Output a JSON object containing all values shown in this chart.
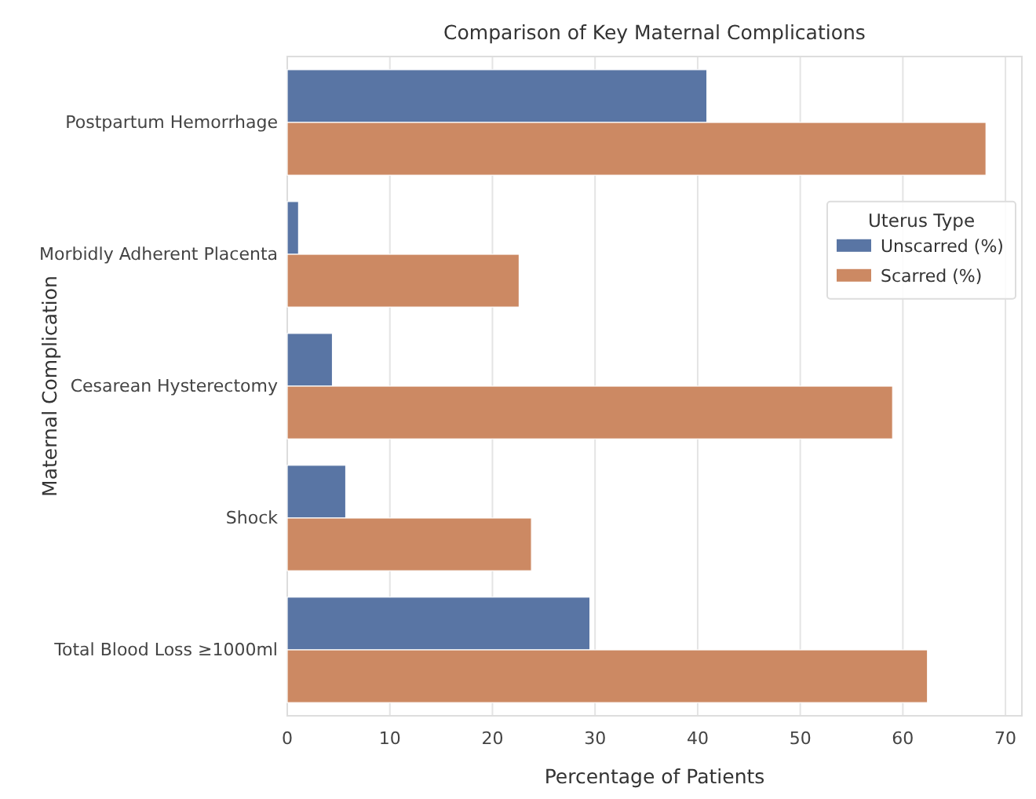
{
  "chart_data": {
    "type": "bar",
    "orientation": "horizontal",
    "title": "Comparison of Key Maternal Complications",
    "xlabel": "Percentage of Patients",
    "ylabel": "Maternal Complication",
    "legend_title": "Uterus Type",
    "legend": "top right",
    "grid": "x",
    "categories": [
      "Postpartum Hemorrhage",
      "Morbidly Adherent Placenta",
      "Cesarean Hysterectomy",
      "Shock",
      "Total Blood Loss ≥1000ml"
    ],
    "series": [
      {
        "name": "Unscarred (%)",
        "color": "#5975a4",
        "values": [
          40.9,
          1.1,
          4.4,
          5.7,
          29.5
        ]
      },
      {
        "name": "Scarred (%)",
        "color": "#cc8963",
        "values": [
          68.1,
          22.6,
          59.0,
          23.8,
          62.4
        ]
      }
    ],
    "xlim": [
      0,
      71.6
    ],
    "xticks": [
      0,
      10,
      20,
      30,
      40,
      50,
      60,
      70
    ]
  }
}
